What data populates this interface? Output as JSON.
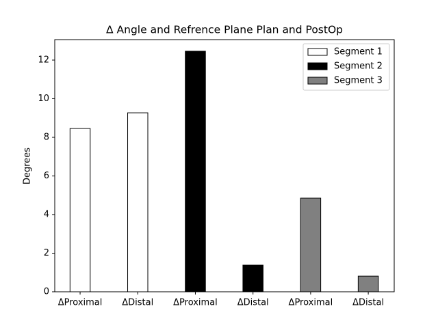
{
  "chart_data": {
    "type": "bar",
    "title": "Δ Angle and Refrence Plane Plan and PostOp",
    "ylabel": "Degrees",
    "categories": [
      "ΔProximal",
      "ΔDistal",
      "ΔProximal",
      "ΔDistal",
      "ΔProximal",
      "ΔDistal"
    ],
    "series": [
      {
        "name": "Segment 1",
        "color": "#ffffff",
        "values": [
          8.46,
          9.27,
          null,
          null,
          null,
          null
        ]
      },
      {
        "name": "Segment 2",
        "color": "#000000",
        "values": [
          null,
          null,
          12.46,
          1.38,
          null,
          null
        ]
      },
      {
        "name": "Segment 3",
        "color": "#808080",
        "values": [
          null,
          null,
          null,
          null,
          4.85,
          0.81
        ]
      }
    ],
    "ylim": [
      0,
      13.06
    ],
    "yticks": [
      0,
      2,
      4,
      6,
      8,
      10,
      12
    ],
    "legend": "upper right",
    "grid": false
  }
}
